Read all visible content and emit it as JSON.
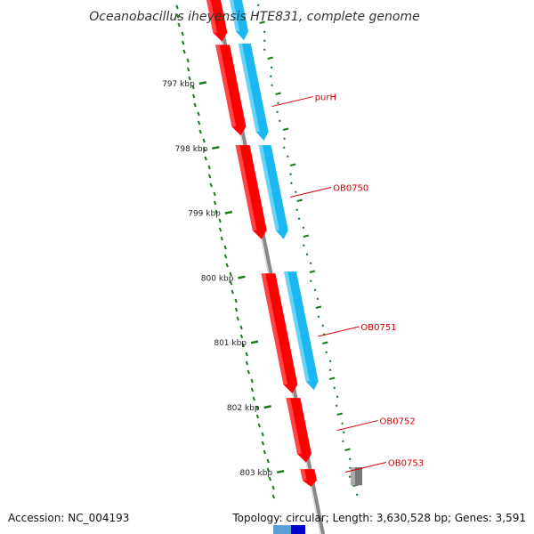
{
  "title": "Oceanobacillus iheyensis HTE831, complete genome",
  "footer": {
    "accession": "Accession: NC_004193",
    "stats": "Topology: circular; Length: 3,630,528 bp; Genes: 3,591"
  },
  "ticks": [
    {
      "label": "797 kbp",
      "kbp": 797
    },
    {
      "label": "798 kbp",
      "kbp": 798
    },
    {
      "label": "799 kbp",
      "kbp": 799
    },
    {
      "label": "800 kbp",
      "kbp": 800
    },
    {
      "label": "801 kbp",
      "kbp": 801
    },
    {
      "label": "802 kbp",
      "kbp": 802
    },
    {
      "label": "803 kbp",
      "kbp": 803
    }
  ],
  "genes": [
    {
      "name": "purH",
      "kbp": 797.2
    },
    {
      "name": "OB0750",
      "kbp": 798.6
    },
    {
      "name": "OB0751",
      "kbp": 800.75
    },
    {
      "name": "OB0752",
      "kbp": 802.2
    },
    {
      "name": "OB0753",
      "kbp": 802.9
    }
  ],
  "features": {
    "red": [
      {
        "start": 795.7,
        "end": 796.35
      },
      {
        "start": 796.4,
        "end": 797.8
      },
      {
        "start": 797.95,
        "end": 799.4
      },
      {
        "start": 799.93,
        "end": 801.78
      },
      {
        "start": 801.85,
        "end": 802.85
      },
      {
        "start": 802.95,
        "end": 803.22
      }
    ],
    "blue": [
      {
        "start": 795.7,
        "end": 796.33
      },
      {
        "start": 796.38,
        "end": 797.88
      },
      {
        "start": 797.95,
        "end": 799.4
      },
      {
        "start": 799.9,
        "end": 801.73
      }
    ],
    "gray": [
      {
        "start": 802.92,
        "end": 803.2
      }
    ]
  },
  "colors": {
    "red": "#ff0000",
    "blue": "#1ab8f0",
    "gray": "#777777",
    "backbone": "#888888",
    "gc_skew": "#1a7a1a",
    "label_line": "#cc0000"
  }
}
